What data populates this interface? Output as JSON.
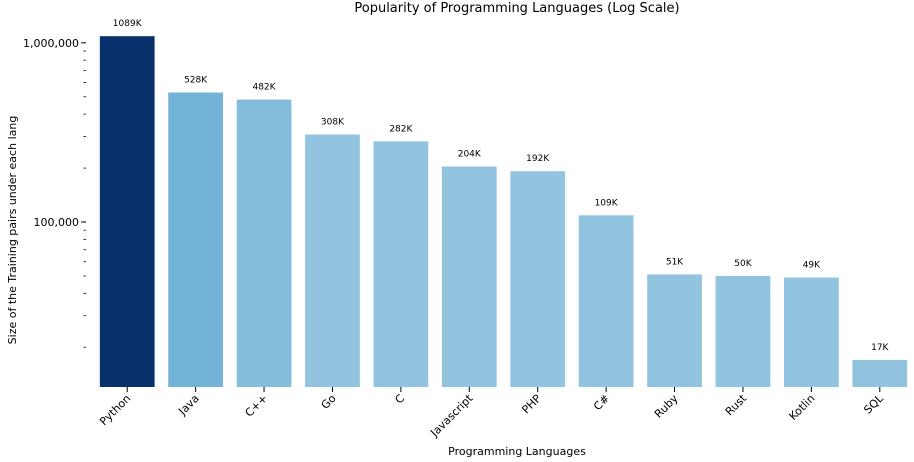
{
  "chart_data": {
    "type": "bar",
    "title": "Popularity of Programming Languages (Log Scale)",
    "xlabel": "Programming Languages",
    "ylabel": "Size of the Training pairs under each lang",
    "yscale": "log",
    "ylim": [
      12000,
      1120000
    ],
    "grid": false,
    "legend": "none",
    "categories": [
      "Python",
      "Java",
      "C++",
      "Go",
      "C",
      "Javascript",
      "PHP",
      "C#",
      "Ruby",
      "Rust",
      "Kotlin",
      "SQL"
    ],
    "values": [
      1089000,
      528000,
      482000,
      308000,
      282000,
      204000,
      192000,
      109000,
      51000,
      50000,
      49000,
      17000
    ],
    "data_labels": [
      "1089K",
      "528K",
      "482K",
      "308K",
      "282K",
      "204K",
      "192K",
      "109K",
      "51K",
      "50K",
      "49K",
      "17K"
    ],
    "y_major_ticks": [
      {
        "value": 100000,
        "label": "100,000"
      },
      {
        "value": 1000000,
        "label": "1,000,000"
      }
    ],
    "colors": [
      "#08306b",
      "#74b3d8",
      "#84bcdb",
      "#93c4df",
      "#93c4df",
      "#93c4df",
      "#93c4df",
      "#93c4df",
      "#93c4df",
      "#93c4df",
      "#93c4df",
      "#93c4df"
    ]
  }
}
